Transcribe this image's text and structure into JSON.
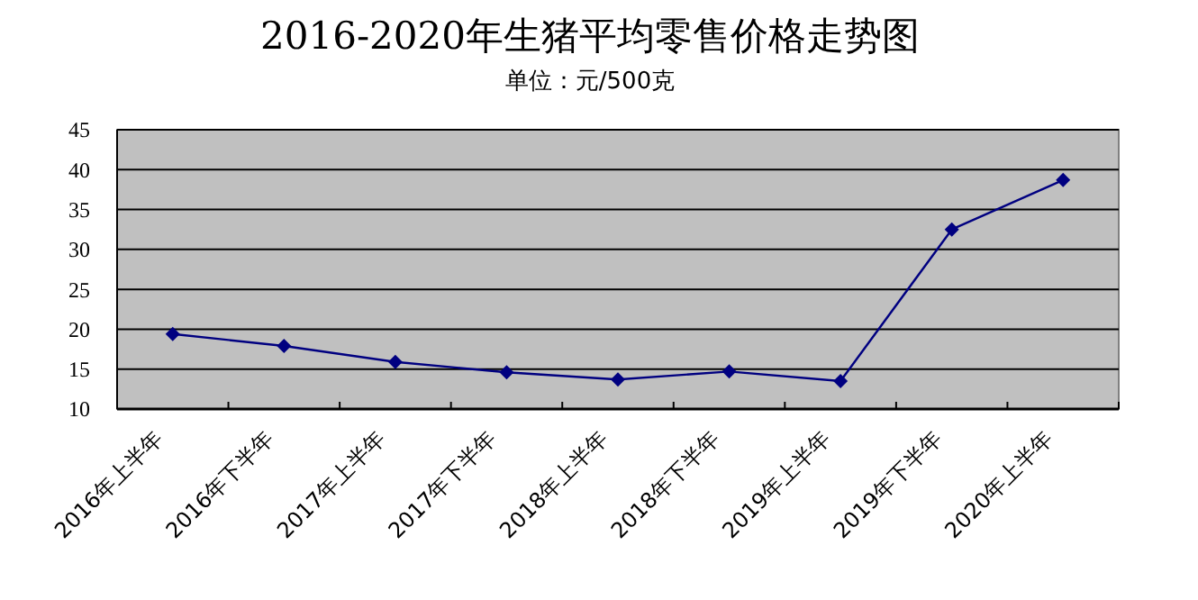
{
  "chart_data": {
    "type": "line",
    "title": "2016-2020年生猪平均零售价格走势图",
    "subtitle": "单位：元/500克",
    "categories": [
      "2016年上半年",
      "2016年下半年",
      "2017年上半年",
      "2017年下半年",
      "2018年上半年",
      "2018年下半年",
      "2019年上半年",
      "2019年下半年",
      "2020年上半年"
    ],
    "series": [
      {
        "color": "#000080",
        "values": [
          19.4,
          17.9,
          15.9,
          14.6,
          13.7,
          14.7,
          13.5,
          32.5,
          38.7
        ]
      }
    ],
    "ylim": [
      10,
      45
    ],
    "yticks": [
      10,
      15,
      20,
      25,
      30,
      35,
      40,
      45
    ],
    "grid": "y",
    "marker": "diamond",
    "line_style": "solid"
  }
}
